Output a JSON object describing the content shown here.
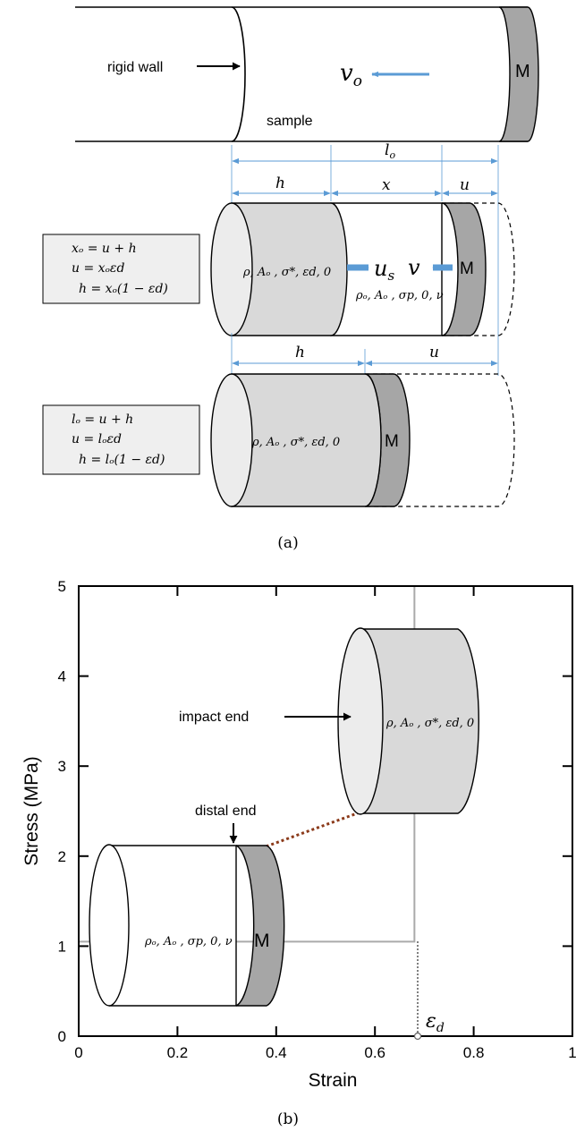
{
  "panel_a": {
    "caption": "(a)",
    "rigid_wall_label": "rigid wall",
    "sample_label": "sample",
    "velocity_label": "v",
    "velocity_sub": "o",
    "mass_label": "M",
    "length_label": "l",
    "length_sub": "o",
    "row2": {
      "dim_h": "h",
      "dim_x": "x",
      "dim_u": "u",
      "eq1": "xₒ = u + h",
      "eq2": "u = xₒεd",
      "eq3": "h = xₒ(1 − εd)",
      "compressed_props": "ρ, Aₒ , σ*, εd, 0",
      "uncompressed_props": "ρₒ, Aₒ , σp, 0, ν",
      "shock_speed_label": "u",
      "shock_speed_sub": "s",
      "mass_velocity_label": "v",
      "mass_label": "M"
    },
    "row3": {
      "dim_h": "h",
      "dim_u": "u",
      "eq1": "lₒ = u + h",
      "eq2": "u = lₒεd",
      "eq3": "h = lₒ(1 − εd)",
      "compressed_props": "ρ, Aₒ , σ*, εd, 0",
      "mass_label": "M"
    }
  },
  "panel_b": {
    "caption": "(b)",
    "impact_end_label": "impact end",
    "distal_end_label": "distal end",
    "compressed_props": "ρ, Aₒ , σ*, εd, 0",
    "uncompressed_props": "ρₒ, Aₒ , σp, 0, ν",
    "mass_label": "M",
    "strain_marker_label": "ε",
    "strain_marker_sub": "d"
  },
  "chart_data": {
    "type": "line",
    "xlabel": "Strain",
    "ylabel": "Stress (MPa)",
    "xlim": [
      0,
      1
    ],
    "ylim": [
      0,
      5
    ],
    "x_ticks": [
      0,
      0.2,
      0.4,
      0.6,
      0.8,
      1
    ],
    "x_tick_labels": [
      "0",
      "0.2",
      "0.4",
      "0.6",
      "0.8",
      "1"
    ],
    "y_ticks": [
      0,
      1,
      2,
      3,
      4,
      5
    ],
    "y_tick_labels": [
      "0",
      "1",
      "2",
      "3",
      "4",
      "5"
    ],
    "grid": false,
    "series": [
      {
        "x": [
          0,
          0.68,
          0.68,
          0.68
        ],
        "y": [
          1.05,
          1.05,
          3.2,
          5
        ]
      }
    ],
    "strain_marker": {
      "x": 0.68,
      "y": 0
    },
    "colors": {
      "curve": "#aaaaaa",
      "arrow_dotted": "#8b3a1a",
      "compressed_fill": "#d9d9d9",
      "mass_fill": "#a6a6a6",
      "dimension_line": "#5b9bd5",
      "velocity_arrow": "#5b9bd5"
    }
  }
}
